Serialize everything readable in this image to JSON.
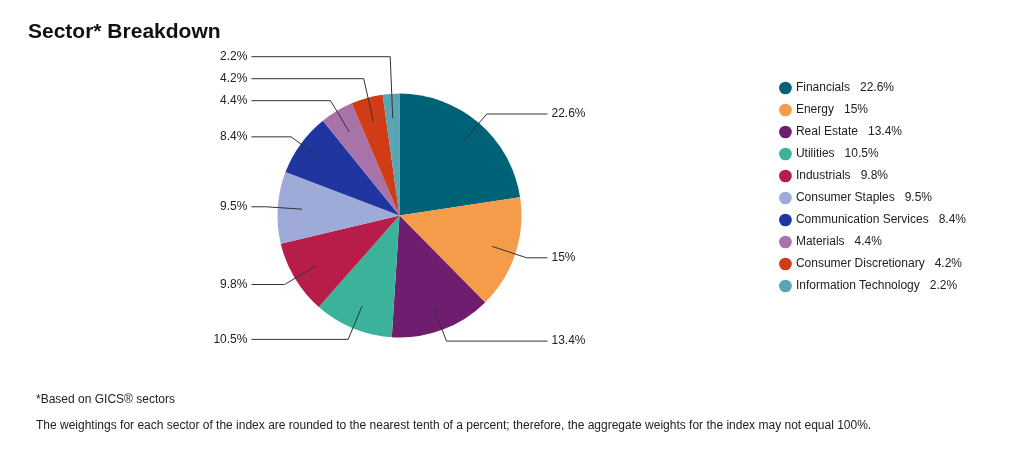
{
  "chart_data": {
    "type": "pie",
    "title": "Sector* Breakdown",
    "categories": [
      "Financials",
      "Energy",
      "Real Estate",
      "Utilities",
      "Industrials",
      "Consumer Staples",
      "Communication Services",
      "Materials",
      "Consumer Discretionary",
      "Information Technology"
    ],
    "values": [
      22.6,
      15,
      13.4,
      10.5,
      9.8,
      9.5,
      8.4,
      4.4,
      4.2,
      2.2
    ],
    "value_labels": [
      "22.6%",
      "15%",
      "13.4%",
      "10.5%",
      "9.8%",
      "9.5%",
      "8.4%",
      "4.4%",
      "4.2%",
      "2.2%"
    ],
    "colors": [
      "#006277",
      "#f59c4a",
      "#6f1e6f",
      "#3bb39a",
      "#b81c48",
      "#9eabd8",
      "#1f36a0",
      "#a873a8",
      "#cf3c16",
      "#5aa4b3"
    ],
    "legend": "right",
    "annotations": [
      "*Based on GICS® sectors",
      "The weightings for each sector of the index are rounded to the nearest tenth of a percent; therefore, the aggregate weights for the index may not equal 100%."
    ]
  }
}
